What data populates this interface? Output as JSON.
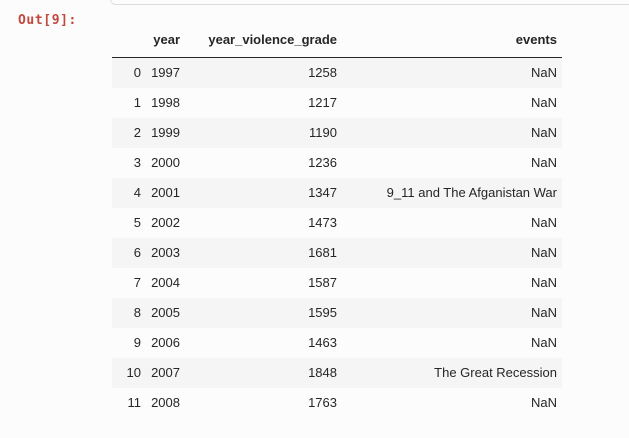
{
  "notebook": {
    "output_prompt": "Out[9]:"
  },
  "table": {
    "index_header": "",
    "columns": [
      "year",
      "year_violence_grade",
      "events"
    ],
    "rows": [
      [
        "0",
        "1997",
        "1258",
        "NaN"
      ],
      [
        "1",
        "1998",
        "1217",
        "NaN"
      ],
      [
        "2",
        "1999",
        "1190",
        "NaN"
      ],
      [
        "3",
        "2000",
        "1236",
        "NaN"
      ],
      [
        "4",
        "2001",
        "1347",
        "9_11 and The Afganistan War"
      ],
      [
        "5",
        "2002",
        "1473",
        "NaN"
      ],
      [
        "6",
        "2003",
        "1681",
        "NaN"
      ],
      [
        "7",
        "2004",
        "1587",
        "NaN"
      ],
      [
        "8",
        "2005",
        "1595",
        "NaN"
      ],
      [
        "9",
        "2006",
        "1463",
        "NaN"
      ],
      [
        "10",
        "2007",
        "1848",
        "The Great Recession"
      ],
      [
        "11",
        "2008",
        "1763",
        "NaN"
      ]
    ]
  },
  "colors": {
    "prompt_red": "#c2483e",
    "row_stripe": "#f5f5f5",
    "text": "#262626",
    "header_rule": "#262626",
    "cell_border": "#dedede",
    "background": "#fcfcfc"
  }
}
